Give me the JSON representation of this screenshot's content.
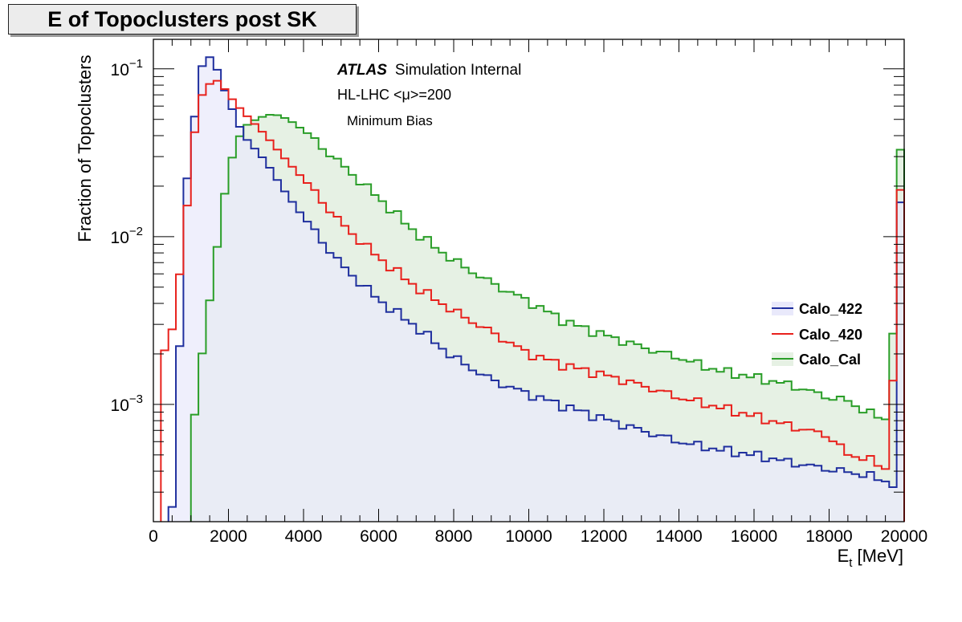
{
  "title": "E of Topoclusters post SK",
  "annotations": {
    "atlas": "ATLAS",
    "status": "Simulation Internal",
    "line2": "HL-LHC <μ>=200",
    "line3": "Minimum Bias"
  },
  "colors": {
    "calo_422": "#1f2f9e",
    "calo_420": "#e8211c",
    "calo_cal": "#2a9e28",
    "calo_422_fill": "#e9e9fb",
    "calo_cal_fill": "#e6f1e4"
  },
  "chart_data": {
    "type": "histogram",
    "title": "E of Topoclusters post SK",
    "xlabel_main": "E",
    "xlabel_sub": "t",
    "xlabel_unit": " [MeV]",
    "ylabel": "Fraction of Topoclusters",
    "xlim": [
      0,
      20000
    ],
    "ylim": [
      0.0002,
      0.15
    ],
    "yscale": "log",
    "grid": false,
    "legend_position": "right",
    "x_ticks": [
      0,
      2000,
      4000,
      6000,
      8000,
      10000,
      12000,
      14000,
      16000,
      18000,
      20000
    ],
    "x_tick_labels": [
      "0",
      "2000",
      "4000",
      "6000",
      "8000",
      "10000",
      "12000",
      "14000",
      "16000",
      "18000",
      "20000"
    ],
    "y_ticks": [
      0.1,
      0.01,
      0.001
    ],
    "y_tick_labels": [
      {
        "base": "10",
        "exp": "−1"
      },
      {
        "base": "10",
        "exp": "−2"
      },
      {
        "base": "10",
        "exp": "−3"
      }
    ],
    "bin_width": 200,
    "series": [
      {
        "name": "Calo_422",
        "points": [
          [
            400,
            0.0002
          ],
          [
            600,
            0.0003
          ],
          [
            800,
            0.0165
          ],
          [
            1000,
            0.03
          ],
          [
            1200,
            0.09
          ],
          [
            1400,
            0.12
          ],
          [
            1600,
            0.115
          ],
          [
            1800,
            0.085
          ],
          [
            2000,
            0.065
          ],
          [
            2400,
            0.04
          ],
          [
            3000,
            0.028
          ],
          [
            3400,
            0.02
          ],
          [
            4000,
            0.013
          ],
          [
            5000,
            0.0068
          ],
          [
            6000,
            0.0042
          ],
          [
            7000,
            0.0029
          ],
          [
            8000,
            0.0019
          ],
          [
            9000,
            0.0014
          ],
          [
            10000,
            0.00115
          ],
          [
            11000,
            0.00097
          ],
          [
            12000,
            0.00082
          ],
          [
            13000,
            0.0007
          ],
          [
            14000,
            0.0006
          ],
          [
            15000,
            0.00054
          ],
          [
            16000,
            0.0005
          ],
          [
            17000,
            0.00045
          ],
          [
            18000,
            0.00041
          ],
          [
            19000,
            0.00038
          ],
          [
            19800,
            0.00033
          ],
          [
            19900,
            0.016
          ]
        ]
      },
      {
        "name": "Calo_420",
        "points": [
          [
            300,
            0.0021
          ],
          [
            500,
            0.0028
          ],
          [
            800,
            0.0087
          ],
          [
            1000,
            0.027
          ],
          [
            1200,
            0.065
          ],
          [
            1400,
            0.075
          ],
          [
            1600,
            0.088
          ],
          [
            1800,
            0.082
          ],
          [
            2000,
            0.07
          ],
          [
            2400,
            0.055
          ],
          [
            3000,
            0.04
          ],
          [
            3400,
            0.031
          ],
          [
            4000,
            0.022
          ],
          [
            5000,
            0.012
          ],
          [
            6000,
            0.0075
          ],
          [
            7000,
            0.005
          ],
          [
            8000,
            0.0036
          ],
          [
            9000,
            0.0027
          ],
          [
            10000,
            0.002
          ],
          [
            11000,
            0.0017
          ],
          [
            12000,
            0.0015
          ],
          [
            13000,
            0.0013
          ],
          [
            14000,
            0.0011
          ],
          [
            15000,
            0.00097
          ],
          [
            16000,
            0.00085
          ],
          [
            17000,
            0.00074
          ],
          [
            18000,
            0.00065
          ],
          [
            18500,
            0.0005
          ],
          [
            19000,
            0.00048
          ],
          [
            19600,
            0.0004
          ],
          [
            19900,
            0.019
          ]
        ]
      },
      {
        "name": "Calo_Cal",
        "points": [
          [
            1000,
            0.00056
          ],
          [
            1200,
            0.00135
          ],
          [
            1400,
            0.003
          ],
          [
            1600,
            0.0058
          ],
          [
            1800,
            0.013
          ],
          [
            2000,
            0.025
          ],
          [
            2200,
            0.035
          ],
          [
            2400,
            0.045
          ],
          [
            2800,
            0.051
          ],
          [
            3200,
            0.054
          ],
          [
            3600,
            0.05
          ],
          [
            4000,
            0.043
          ],
          [
            5000,
            0.027
          ],
          [
            6000,
            0.017
          ],
          [
            7000,
            0.0105
          ],
          [
            8000,
            0.0072
          ],
          [
            9000,
            0.0053
          ],
          [
            10000,
            0.0041
          ],
          [
            11000,
            0.0031
          ],
          [
            12000,
            0.0026
          ],
          [
            13000,
            0.0022
          ],
          [
            14000,
            0.0019
          ],
          [
            15000,
            0.0016
          ],
          [
            16000,
            0.00145
          ],
          [
            17000,
            0.0013
          ],
          [
            18000,
            0.0011
          ],
          [
            18500,
            0.00105
          ],
          [
            19000,
            0.0009
          ],
          [
            19600,
            0.0008
          ],
          [
            19900,
            0.033
          ]
        ]
      }
    ]
  }
}
